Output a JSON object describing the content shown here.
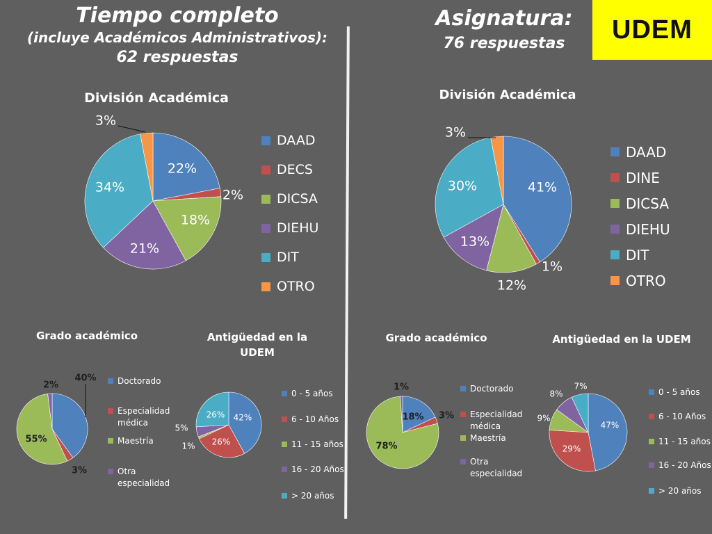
{
  "header_left": {
    "title": "Tiempo completo",
    "subtitle": "(incluye Académicos Administrativos):",
    "count": "62 respuestas"
  },
  "header_right": {
    "title": "Asignatura:",
    "count": "76 respuestas"
  },
  "logo": {
    "text": "UDEM",
    "background": "#ffff00"
  },
  "colors": {
    "blue": "#4f81bd",
    "red": "#c0504d",
    "green": "#9bbb59",
    "purple": "#8064a2",
    "cyan": "#4bacc6",
    "orange": "#f79646"
  },
  "chart_data": [
    {
      "type": "pie",
      "title": "División Académica",
      "categories": [
        "DAAD",
        "DECS",
        "DICSA",
        "DIEHU",
        "DIT",
        "OTRO"
      ],
      "values": [
        22,
        2,
        18,
        21,
        34,
        3
      ],
      "labels": [
        "22%",
        "2%",
        "18%",
        "21%",
        "34%",
        "3%"
      ],
      "legend": "right"
    },
    {
      "type": "pie",
      "title": "División Académica",
      "categories": [
        "DAAD",
        "DINE",
        "DICSA",
        "DIEHU",
        "DIT",
        "OTRO"
      ],
      "values": [
        41,
        1,
        12,
        13,
        30,
        3
      ],
      "labels": [
        "41%",
        "1%",
        "12%",
        "13%",
        "30%",
        "3%"
      ],
      "legend": "right"
    },
    {
      "type": "pie",
      "title": "Grado académico",
      "categories": [
        "Doctorado",
        "Especialidad médica",
        "Maestría",
        "Otra especialidad"
      ],
      "values": [
        40,
        3,
        55,
        2
      ],
      "labels": [
        "40%",
        "3%",
        "55%",
        "2%"
      ],
      "legend": "right"
    },
    {
      "type": "pie",
      "title": "Antigüedad en la UDEM",
      "categories": [
        "0 - 5 años",
        "6 - 10 Años",
        "11 - 15 años",
        "16 - 20 Años",
        "> 20 años"
      ],
      "values": [
        42,
        26,
        1,
        5,
        26
      ],
      "labels": [
        "42%",
        "26%",
        "1%",
        "5%",
        "26%"
      ],
      "legend": "right"
    },
    {
      "type": "pie",
      "title": "Grado académico",
      "categories": [
        "Doctorado",
        "Especialidad médica",
        "Maestría",
        "Otra especialidad"
      ],
      "values": [
        18,
        3,
        78,
        1
      ],
      "labels": [
        "18%",
        "3%",
        "78%",
        "1%"
      ],
      "legend": "right"
    },
    {
      "type": "pie",
      "title": "Antigüedad en la UDEM",
      "categories": [
        "0 - 5 años",
        "6 - 10 Años",
        "11 - 15 años",
        "16 - 20 Años",
        "> 20 años"
      ],
      "values": [
        47,
        29,
        9,
        8,
        7
      ],
      "labels": [
        "47%",
        "29%",
        "9%",
        "8%",
        "7%"
      ],
      "legend": "right"
    }
  ]
}
